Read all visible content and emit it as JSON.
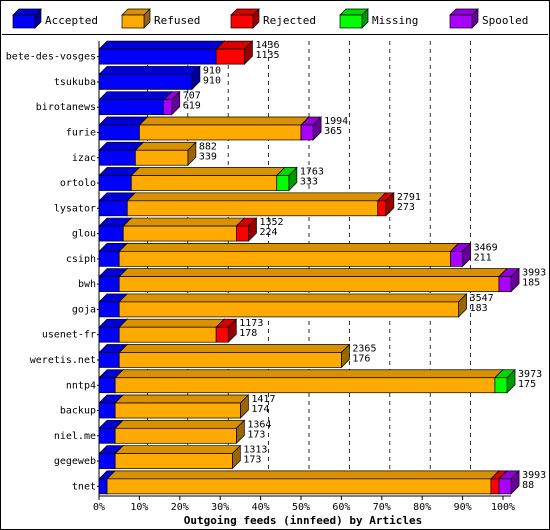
{
  "chart_data": {
    "type": "bar",
    "orientation": "horizontal",
    "stacked": true,
    "xlabel": "Outgoing feeds (innfeed) by Articles",
    "xlim": [
      0,
      100
    ],
    "x_ticks": [
      "0%",
      "10%",
      "20%",
      "30%",
      "40%",
      "50%",
      "60%",
      "70%",
      "80%",
      "90%",
      "100%"
    ],
    "grid": "vertical dashed",
    "legend_position": "top",
    "legend": [
      {
        "name": "Accepted",
        "color": "#0000ff"
      },
      {
        "name": "Refused",
        "color": "#ffaa00"
      },
      {
        "name": "Rejected",
        "color": "#ff0000"
      },
      {
        "name": "Missing",
        "color": "#00ff00"
      },
      {
        "name": "Spooled",
        "color": "#aa00ff"
      }
    ],
    "categories": [
      "bete-des-vosges",
      "tsukuba",
      "birotanews",
      "furie",
      "izac",
      "ortolo",
      "lysator",
      "glou",
      "csiph",
      "bwh",
      "goja",
      "usenet-fr",
      "weretis.net",
      "nntp4",
      "backup",
      "niel.me",
      "gegeweb",
      "tnet"
    ],
    "offered": [
      1436,
      910,
      707,
      1994,
      882,
      1763,
      2791,
      1352,
      3469,
      3993,
      3547,
      1173,
      2365,
      3973,
      1417,
      1364,
      1313,
      3993
    ],
    "accepted": [
      1135,
      910,
      619,
      365,
      339,
      333,
      273,
      224,
      211,
      185,
      183,
      178,
      176,
      175,
      174,
      173,
      173,
      88
    ],
    "series": [
      {
        "name": "Accepted",
        "values": [
          29,
          23,
          16,
          10,
          9,
          8,
          7,
          6,
          5,
          5,
          5,
          5,
          5,
          4,
          4,
          4,
          4,
          2
        ]
      },
      {
        "name": "Refused",
        "values": [
          0,
          0,
          0,
          40,
          13,
          36,
          62,
          28,
          82,
          94,
          84,
          24,
          55,
          94,
          31,
          30,
          29,
          95
        ]
      },
      {
        "name": "Rejected",
        "values": [
          7,
          0,
          0,
          0,
          0,
          0,
          2,
          3,
          0,
          0,
          0,
          3,
          0,
          0,
          0,
          0,
          0,
          2
        ]
      },
      {
        "name": "Missing",
        "values": [
          0,
          0,
          0,
          0,
          0,
          3,
          0,
          0,
          0,
          0,
          0,
          0,
          0,
          3,
          0,
          0,
          0,
          0
        ]
      },
      {
        "name": "Spooled",
        "values": [
          0,
          0,
          2,
          3,
          0,
          0,
          0,
          0,
          3,
          3,
          0,
          0,
          0,
          0,
          0,
          0,
          0,
          3
        ]
      }
    ]
  }
}
